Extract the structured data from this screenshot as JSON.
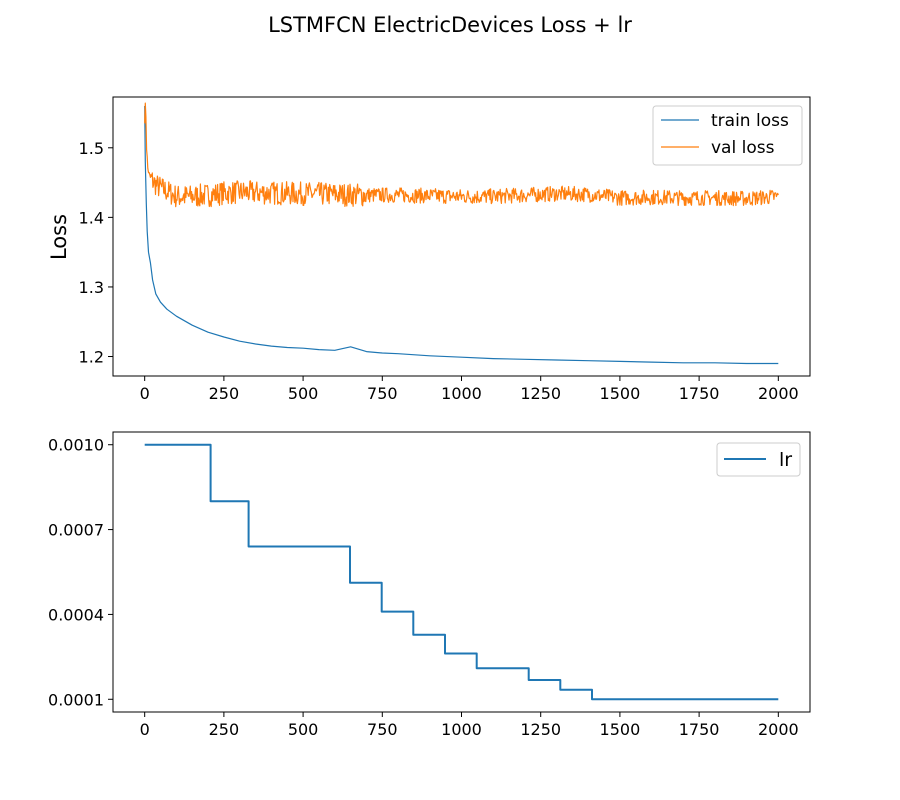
{
  "title": "LSTMFCN ElectricDevices Loss + lr",
  "colors": {
    "train": "#1f77b4",
    "val": "#ff7f0e",
    "lr": "#1f77b4",
    "axes": "#000000",
    "background": "#ffffff"
  },
  "chart_data": [
    {
      "type": "line",
      "title": "",
      "xlabel": "",
      "ylabel": "Loss",
      "xlim": [
        -100,
        2100
      ],
      "ylim": [
        1.172,
        1.573
      ],
      "xticks": [
        0,
        250,
        500,
        750,
        1000,
        1250,
        1500,
        1750,
        2000
      ],
      "xtick_labels": [
        "0",
        "250",
        "500",
        "750",
        "1000",
        "1250",
        "1500",
        "1750",
        "2000"
      ],
      "yticks": [
        1.2,
        1.3,
        1.4,
        1.5
      ],
      "ytick_labels": [
        "1.2",
        "1.3",
        "1.4",
        "1.5"
      ],
      "grid": false,
      "legend_position": "top-right",
      "series": [
        {
          "name": "train loss",
          "x": [
            0,
            2,
            5,
            8,
            12,
            18,
            25,
            35,
            50,
            70,
            100,
            150,
            200,
            250,
            300,
            350,
            400,
            450,
            500,
            550,
            600,
            650,
            700,
            750,
            800,
            900,
            1000,
            1100,
            1200,
            1300,
            1400,
            1500,
            1600,
            1700,
            1800,
            1900,
            2000
          ],
          "values": [
            1.56,
            1.48,
            1.42,
            1.38,
            1.35,
            1.335,
            1.31,
            1.29,
            1.278,
            1.268,
            1.258,
            1.245,
            1.235,
            1.228,
            1.222,
            1.218,
            1.215,
            1.213,
            1.212,
            1.21,
            1.209,
            1.214,
            1.207,
            1.205,
            1.204,
            1.201,
            1.199,
            1.197,
            1.196,
            1.195,
            1.194,
            1.193,
            1.192,
            1.191,
            1.191,
            1.19,
            1.19
          ]
        },
        {
          "name": "val loss",
          "x": [
            0,
            3,
            6,
            10,
            15,
            20,
            30,
            40,
            60,
            80,
            100,
            150,
            200,
            250,
            300,
            400,
            500,
            600,
            700,
            800,
            900,
            1000,
            1100,
            1200,
            1300,
            1400,
            1500,
            1600,
            1700,
            1800,
            1900,
            2000
          ],
          "values": [
            1.54,
            1.57,
            1.5,
            1.47,
            1.46,
            1.455,
            1.45,
            1.445,
            1.44,
            1.435,
            1.43,
            1.43,
            1.432,
            1.435,
            1.436,
            1.435,
            1.434,
            1.433,
            1.432,
            1.432,
            1.431,
            1.43,
            1.43,
            1.432,
            1.434,
            1.433,
            1.428,
            1.429,
            1.428,
            1.428,
            1.427,
            1.43
          ]
        }
      ]
    },
    {
      "type": "line",
      "title": "",
      "xlabel": "",
      "ylabel": "",
      "xlim": [
        -100,
        2100
      ],
      "ylim": [
        5.5e-05,
        0.001045
      ],
      "xticks": [
        0,
        250,
        500,
        750,
        1000,
        1250,
        1500,
        1750,
        2000
      ],
      "xtick_labels": [
        "0",
        "250",
        "500",
        "750",
        "1000",
        "1250",
        "1500",
        "1750",
        "2000"
      ],
      "yticks": [
        0.0001,
        0.0004,
        0.0007,
        0.001
      ],
      "ytick_labels": [
        "0.0001",
        "0.0004",
        "0.0007",
        "0.0010"
      ],
      "grid": false,
      "legend_position": "top-right",
      "series": [
        {
          "name": "lr",
          "step": "post",
          "x": [
            0,
            208,
            328,
            648,
            748,
            848,
            948,
            1048,
            1212,
            1312,
            1412,
            2000
          ],
          "values": [
            0.001,
            0.0008,
            0.00064,
            0.000512,
            0.00041,
            0.000328,
            0.000262,
            0.00021,
            0.000168,
            0.000134,
            0.0001,
            0.0001
          ]
        }
      ]
    }
  ]
}
